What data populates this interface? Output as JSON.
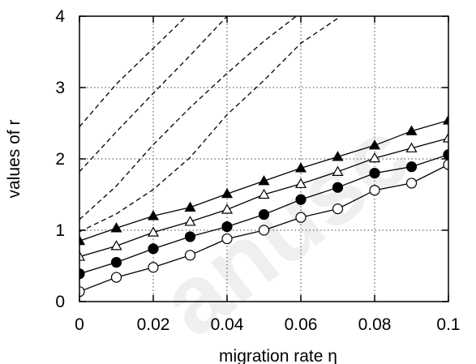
{
  "chart_data": {
    "type": "line",
    "xlabel": "migration rate η",
    "ylabel": "values of r",
    "xlim": [
      0,
      0.1
    ],
    "ylim": [
      0,
      4
    ],
    "x_ticks": [
      0,
      0.02,
      0.04,
      0.06,
      0.08,
      0.1
    ],
    "x_tick_labels": [
      "0",
      "0.02",
      "0.04",
      "0.06",
      "0.08",
      "0.1"
    ],
    "y_ticks": [
      0,
      1,
      2,
      3,
      4
    ],
    "y_tick_labels": [
      "0",
      "1",
      "2",
      "3",
      "4"
    ],
    "grid": true,
    "grid_style": "dotted",
    "x": [
      0,
      0.01,
      0.02,
      0.03,
      0.04,
      0.05,
      0.06,
      0.07,
      0.08,
      0.09,
      0.1
    ],
    "series": [
      {
        "marker": "filled-triangle",
        "color": "#000000",
        "values": [
          0.85,
          1.03,
          1.2,
          1.32,
          1.51,
          1.69,
          1.87,
          2.03,
          2.19,
          2.39,
          2.54
        ]
      },
      {
        "marker": "open-triangle",
        "color": "#000000",
        "values": [
          0.63,
          0.78,
          0.97,
          1.12,
          1.29,
          1.5,
          1.65,
          1.82,
          2.01,
          2.15,
          2.29
        ]
      },
      {
        "marker": "filled-circle",
        "color": "#000000",
        "values": [
          0.39,
          0.55,
          0.74,
          0.91,
          1.05,
          1.22,
          1.43,
          1.6,
          1.8,
          1.89,
          2.06
        ]
      },
      {
        "marker": "open-circle",
        "color": "#000000",
        "values": [
          0.14,
          0.34,
          0.48,
          0.65,
          0.88,
          1.0,
          1.18,
          1.3,
          1.56,
          1.66,
          1.92
        ]
      },
      {
        "marker": "none",
        "style": "dashed",
        "color": "#000000",
        "values": [
          2.45,
          3.05,
          3.55,
          4.05,
          null,
          null,
          null,
          null,
          null,
          null,
          null
        ]
      },
      {
        "marker": "none",
        "style": "dashed",
        "color": "#000000",
        "values": [
          1.82,
          2.38,
          2.92,
          3.45,
          4.0,
          null,
          null,
          null,
          null,
          null,
          null
        ]
      },
      {
        "marker": "none",
        "style": "dashed",
        "color": "#000000",
        "values": [
          1.15,
          1.62,
          2.2,
          2.72,
          3.2,
          3.65,
          4.05,
          null,
          null,
          null,
          null
        ]
      },
      {
        "marker": "none",
        "style": "dashed",
        "color": "#000000",
        "values": [
          0.98,
          1.23,
          1.57,
          2.02,
          2.62,
          3.1,
          3.62,
          3.97,
          null,
          null,
          null
        ]
      }
    ]
  },
  "watermark": "anusc"
}
